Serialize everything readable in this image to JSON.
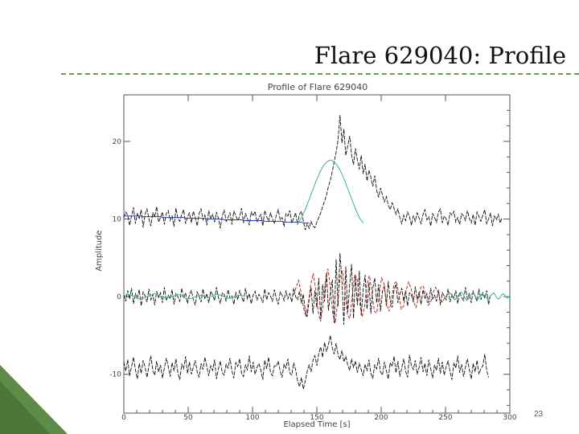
{
  "slide": {
    "title": "Flare 629040: Profile",
    "page_number": "23",
    "accent_color": "#6a9a52"
  },
  "chart_data": {
    "type": "line",
    "title": "Profile of Flare 629040",
    "xlabel": "Elapsed Time [s]",
    "ylabel": "Amplitude",
    "xlim": [
      0,
      300
    ],
    "ylim": [
      -15,
      26
    ],
    "x_ticks": [
      "0",
      "50",
      "100",
      "150",
      "200",
      "250",
      "300"
    ],
    "y_ticks": [
      "-10",
      "0",
      "10",
      "20"
    ],
    "grid": false,
    "x_step": 1.5,
    "series": [
      {
        "color": "#111111",
        "values": [
          10.2,
          10.9,
          10.5,
          9.2,
          10.4,
          11.5,
          9.4,
          10.7,
          10.1,
          11.2,
          8.9,
          10.6,
          11.3,
          10.0,
          9.1,
          10.8,
          10.3,
          11.6,
          9.6,
          10.2,
          10.9,
          9.3,
          10.7,
          11.1,
          9.8,
          10.4,
          9.0,
          11.4,
          10.1,
          9.7,
          10.6,
          11.2,
          9.4,
          10.3,
          10.8,
          9.5,
          11.0,
          10.2,
          9.1,
          10.7,
          11.3,
          9.9,
          10.5,
          9.2,
          11.1,
          10.0,
          10.6,
          9.6,
          10.9,
          10.1,
          8.8,
          10.4,
          11.2,
          9.7,
          10.2,
          10.8,
          9.3,
          11.0,
          10.5,
          9.8,
          10.3,
          11.4,
          9.5,
          10.7,
          10.1,
          9.2,
          10.9,
          10.4,
          11.0,
          9.6,
          10.2,
          10.6,
          9.1,
          11.1,
          10.3,
          9.7,
          10.8,
          10.0,
          9.4,
          10.5,
          11.2,
          9.9,
          10.2,
          9.0,
          10.7,
          10.4,
          11.1,
          9.5,
          10.1,
          10.8,
          9.3,
          10.6,
          11.0,
          9.8,
          8.6,
          9.4,
          8.8,
          9.7,
          9.1,
          8.9,
          9.6,
          10.2,
          10.8,
          11.6,
          12.3,
          13.1,
          14.2,
          15.0,
          16.1,
          17.4,
          18.6,
          20.2,
          23.4,
          19.8,
          21.6,
          18.2,
          19.4,
          20.7,
          18.3,
          17.0,
          19.1,
          17.6,
          16.4,
          18.2,
          15.8,
          17.1,
          14.9,
          16.3,
          15.4,
          14.2,
          15.6,
          13.7,
          12.8,
          14.0,
          13.1,
          12.2,
          12.9,
          11.8,
          11.2,
          12.1,
          11.4,
          10.6,
          11.3,
          10.2,
          9.4,
          10.5,
          9.8,
          10.9,
          10.3,
          9.2,
          10.4,
          9.7,
          10.8,
          10.1,
          9.4,
          10.6,
          11.2,
          9.9,
          10.3,
          9.1,
          10.7,
          10.2,
          9.6,
          10.9,
          11.3,
          9.5,
          10.4,
          10.0,
          9.2,
          10.8,
          10.5,
          11.0,
          9.6,
          10.2,
          9.3,
          10.7,
          10.4,
          9.8,
          11.1,
          10.1,
          9.5,
          10.6,
          9.2,
          10.9,
          10.3,
          9.7,
          10.5,
          11.2,
          9.4,
          10.0,
          10.8,
          9.1,
          10.4,
          9.9,
          10.6,
          9.5,
          10.2
        ]
      },
      {
        "color": "#2f3a9c",
        "values": [
          10.4,
          10.4,
          10.4,
          10.4,
          10.4,
          10.4,
          10.4,
          10.4,
          10.4,
          10.4,
          10.3,
          10.3,
          10.3,
          10.3,
          10.3,
          10.3,
          10.3,
          10.3,
          10.3,
          10.3,
          10.2,
          10.2,
          10.2,
          10.2,
          10.2,
          10.2,
          10.2,
          10.2,
          10.2,
          10.2,
          10.2,
          10.2,
          10.1,
          10.1,
          10.1,
          10.1,
          10.1,
          10.1,
          10.1,
          10.1,
          10.1,
          10.1,
          10.1,
          10.0,
          10.0,
          10.0,
          10.0,
          10.0,
          10.0,
          10.0,
          10.0,
          10.0,
          9.9,
          9.9,
          9.9,
          9.9,
          9.9,
          9.9,
          9.9,
          9.9,
          9.9,
          9.9,
          9.8,
          9.8,
          9.8,
          9.8,
          9.8,
          9.8,
          9.8,
          9.8,
          9.8,
          9.8,
          9.8,
          9.7,
          9.7,
          9.7,
          9.7,
          9.7,
          9.7,
          9.7,
          9.7,
          9.7,
          9.7,
          9.6,
          9.6,
          9.6,
          9.6,
          9.6,
          9.6,
          9.6,
          9.6,
          9.6,
          9.6,
          9.5,
          9.5,
          9.5,
          9.5
        ]
      },
      {
        "color": "#3cb873",
        "values": [
          9.5,
          9.8,
          10.2,
          10.8,
          11.4,
          12.1,
          12.8,
          13.5,
          14.2,
          14.9,
          15.5,
          16.1,
          16.6,
          17.0,
          17.3,
          17.5,
          17.6,
          17.5,
          17.3,
          17.0,
          16.6,
          16.1,
          15.5,
          14.9,
          14.2,
          13.5,
          12.8,
          12.1,
          11.4,
          10.8,
          10.2,
          9.8,
          9.5
        ]
      },
      {
        "color": "#111111",
        "values": [
          0.2,
          -0.6,
          0.8,
          -0.3,
          1.1,
          -0.9,
          0.4,
          -0.2,
          0.9,
          -1.2,
          0.6,
          0.1,
          -0.7,
          1.0,
          -0.4,
          0.3,
          -1.1,
          0.7,
          -0.1,
          0.5,
          -0.8,
          1.2,
          -0.5,
          0.2,
          -0.3,
          0.9,
          -1.0,
          0.4,
          0.0,
          -0.6,
          1.1,
          -0.2,
          0.5,
          -0.9,
          0.3,
          0.8,
          -0.4,
          -1.1,
          0.6,
          0.1,
          -0.7,
          1.0,
          -0.3,
          0.4,
          -0.8,
          0.7,
          0.2,
          -0.5,
          1.2,
          -0.1,
          -0.9,
          0.5,
          0.3,
          -0.6,
          0.9,
          -0.2,
          0.1,
          -1.0,
          0.6,
          -0.4,
          0.8,
          0.0,
          -0.7,
          1.1,
          -0.3,
          0.4,
          -0.9,
          0.2,
          0.7,
          -0.5,
          0.3,
          -0.1,
          -0.8,
          1.0,
          -0.4,
          0.5,
          0.1,
          -0.6,
          0.9,
          -0.2,
          -1.0,
          0.6,
          0.2,
          -0.5,
          0.8,
          -0.3,
          0.4,
          -0.7,
          1.1,
          0.0,
          -0.4,
          0.7,
          -0.9,
          0.3,
          -1.8,
          -2.6,
          -0.4,
          1.2,
          -2.2,
          0.8,
          -1.4,
          2.4,
          -2.9,
          1.6,
          -0.6,
          3.1,
          -1.8,
          0.4,
          2.2,
          -3.4,
          4.8,
          -1.2,
          5.6,
          2.1,
          -3.6,
          3.9,
          -2.0,
          1.5,
          4.2,
          -2.8,
          2.6,
          -1.1,
          3.3,
          -2.4,
          0.9,
          2.8,
          -1.6,
          1.9,
          -2.2,
          1.1,
          2.4,
          -0.8,
          1.6,
          -1.9,
          0.7,
          1.4,
          -1.2,
          2.0,
          -0.5,
          -1.4,
          0.9,
          1.6,
          -0.8,
          0.3,
          1.1,
          -0.6,
          0.8,
          -1.2,
          0.5,
          0.2,
          -0.7,
          1.3,
          -0.4,
          0.6,
          -1.0,
          0.9,
          -0.2,
          0.4,
          -0.8,
          1.1,
          -0.3,
          0.2,
          -0.6,
          0.9,
          -1.1,
          0.5,
          0.1,
          -0.4,
          1.0,
          -0.7,
          0.3,
          -0.2,
          0.8,
          -0.9,
          0.6,
          -0.1,
          -0.5,
          1.2,
          -0.3,
          0.4,
          -0.8,
          0.7,
          0.0,
          -0.6,
          1.0,
          -0.4,
          0.5,
          -0.2,
          0.8,
          -1.0,
          0.3
        ]
      },
      {
        "color": "#3cb873",
        "values": [
          0.1,
          0.3,
          0.2,
          -0.1,
          -0.3,
          -0.2,
          0.0,
          0.2,
          0.4,
          0.2,
          -0.1,
          -0.2,
          0.0,
          0.1,
          0.3,
          0.1,
          -0.2,
          -0.3,
          -0.1,
          0.1,
          0.2,
          0.0,
          -0.1,
          0.1,
          0.3,
          0.2,
          0.0,
          -0.2,
          -0.1,
          0.1,
          0.2,
          0.1
        ]
      },
      {
        "color": "#3cb873",
        "values": [
          0.0,
          0.2,
          0.5,
          0.3,
          -0.2,
          -0.4,
          -0.1,
          0.3,
          0.6,
          0.4,
          -0.1,
          -0.5,
          -0.2,
          0.2,
          0.5,
          0.3,
          -0.2,
          -0.3,
          0.1,
          0.4,
          0.2,
          -0.1,
          -0.4,
          0.0,
          0.3,
          0.5,
          0.1,
          -0.3,
          -0.2,
          0.2,
          0.4,
          0.1,
          -0.2,
          0.0
        ]
      },
      {
        "color": "#b02a2a",
        "values": [
          0.2,
          1.2,
          2.1,
          0.6,
          -1.4,
          -2.6,
          -0.8,
          1.6,
          3.0,
          0.9,
          -1.9,
          -3.2,
          -1.1,
          2.1,
          3.6,
          1.3,
          -2.2,
          -3.4,
          -0.6,
          2.6,
          3.3,
          0.8,
          -2.4,
          -2.8,
          0.4,
          2.9,
          2.2,
          -0.9,
          -2.6,
          -1.3,
          1.8,
          2.7,
          0.6,
          -1.9,
          -2.1,
          0.5,
          2.4,
          1.6,
          -0.8,
          -1.9,
          -0.4,
          1.6,
          2.0,
          0.3,
          -1.6,
          -1.2,
          0.8,
          1.9,
          1.1,
          -0.6,
          -1.4,
          -0.2,
          1.2,
          1.4,
          0.1,
          -1.1,
          -0.8,
          0.5,
          1.2,
          0.6,
          -0.4,
          -0.7,
          0.1
        ]
      },
      {
        "color": "#111111",
        "values": [
          -8.4,
          -9.6,
          -8.1,
          -10.2,
          -9.0,
          -7.8,
          -9.4,
          -10.6,
          -8.6,
          -9.9,
          -8.2,
          -9.1,
          -10.4,
          -8.9,
          -7.6,
          -9.5,
          -10.1,
          -8.3,
          -9.7,
          -8.8,
          -10.5,
          -9.2,
          -7.9,
          -9.0,
          -10.3,
          -8.5,
          -9.6,
          -8.0,
          -9.8,
          -10.7,
          -8.7,
          -9.3,
          -7.7,
          -9.9,
          -8.4,
          -10.0,
          -9.1,
          -8.2,
          -9.7,
          -10.4,
          -8.6,
          -9.4,
          -7.8,
          -9.0,
          -10.2,
          -8.9,
          -9.5,
          -8.1,
          -10.6,
          -9.3,
          -8.3,
          -9.8,
          -10.1,
          -8.7,
          -9.2,
          -7.9,
          -9.6,
          -10.5,
          -8.5,
          -9.0,
          -8.0,
          -9.9,
          -10.3,
          -8.8,
          -9.4,
          -7.6,
          -9.7,
          -8.4,
          -10.0,
          -9.1,
          -8.6,
          -9.5,
          -10.7,
          -8.2,
          -9.3,
          -7.8,
          -9.8,
          -10.2,
          -8.9,
          -9.0,
          -8.3,
          -9.6,
          -10.4,
          -8.7,
          -9.2,
          -8.0,
          -9.9,
          -10.1,
          -8.5,
          -9.4,
          -10.8,
          -11.6,
          -10.4,
          -11.9,
          -10.9,
          -9.6,
          -8.8,
          -9.7,
          -8.2,
          -7.6,
          -8.9,
          -7.3,
          -6.5,
          -7.8,
          -5.9,
          -7.1,
          -6.2,
          -5.0,
          -6.6,
          -7.4,
          -6.0,
          -7.5,
          -8.1,
          -6.9,
          -8.4,
          -7.7,
          -8.8,
          -9.5,
          -8.0,
          -9.1,
          -8.3,
          -9.8,
          -8.6,
          -9.4,
          -10.2,
          -8.7,
          -9.6,
          -8.1,
          -9.9,
          -10.5,
          -8.8,
          -9.3,
          -7.9,
          -9.7,
          -10.1,
          -8.4,
          -9.5,
          -10.6,
          -8.5,
          -9.0,
          -7.7,
          -9.8,
          -8.3,
          -10.3,
          -9.2,
          -8.0,
          -9.6,
          -10.4,
          -7.5,
          -8.9,
          -9.4,
          -8.2,
          -10.0,
          -9.1,
          -7.8,
          -9.7,
          -8.6,
          -10.2,
          -8.1,
          -9.3,
          -10.5,
          -8.8,
          -9.5,
          -7.9,
          -9.9,
          -8.4,
          -10.1,
          -9.0,
          -8.3,
          -9.6,
          -10.7,
          -8.5,
          -9.2,
          -7.6,
          -9.8,
          -8.7,
          -10.3,
          -9.1,
          -8.0,
          -9.4,
          -10.6,
          -8.6,
          -9.7,
          -8.2,
          -10.0,
          -9.3,
          -8.9,
          -7.4,
          -9.5,
          -10.4
        ]
      }
    ],
    "green_segments": [
      {
        "series_index": 2,
        "x0": 135,
        "step": 1.6
      },
      {
        "series_index": 4,
        "x0": 0,
        "step": 3
      },
      {
        "series_index": 5,
        "x0": 250,
        "step": 1.5
      },
      {
        "series_index": 6,
        "x0": 132,
        "step": 1.9
      }
    ]
  }
}
